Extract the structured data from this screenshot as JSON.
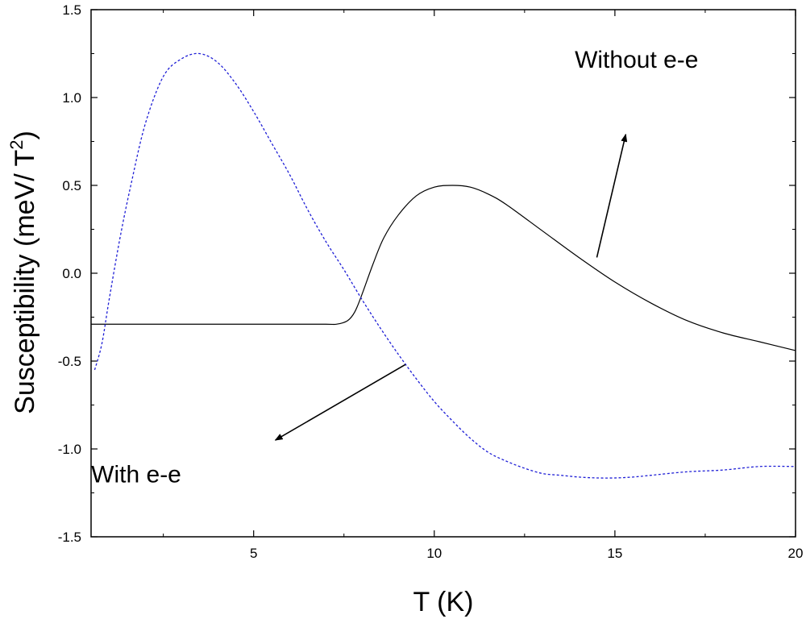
{
  "chart_data": {
    "type": "line",
    "xlabel": "T (K)",
    "ylabel_main": "Susceptibility (meV/ T",
    "ylabel_sup": "2",
    "ylabel_close": ")",
    "xlim": [
      0.5,
      20
    ],
    "ylim": [
      -1.5,
      1.5
    ],
    "x_ticks": [
      5,
      10,
      15,
      20
    ],
    "x_tick_labels": [
      "5",
      "10",
      "15",
      "20"
    ],
    "x_minor_ticks": [
      2.5,
      7.5,
      12.5,
      17.5
    ],
    "y_ticks": [
      -1.5,
      -1.0,
      -0.5,
      0.0,
      0.5,
      1.0,
      1.5
    ],
    "y_tick_labels": [
      "-1.5",
      "-1.0",
      "-0.5",
      "0.0",
      "0.5",
      "1.0",
      "1.5"
    ],
    "grid": false,
    "series": [
      {
        "color": "#000000",
        "style": "solid",
        "x": [
          0.5,
          2,
          4,
          6,
          7,
          7.3,
          7.6,
          7.8,
          8.0,
          8.3,
          8.6,
          9.0,
          9.5,
          10.0,
          10.5,
          11.0,
          11.5,
          12.0,
          13.0,
          14.0,
          15.0,
          16.0,
          17.0,
          18.0,
          19.0,
          20.0
        ],
        "y": [
          -0.29,
          -0.29,
          -0.29,
          -0.29,
          -0.29,
          -0.29,
          -0.27,
          -0.22,
          -0.12,
          0.05,
          0.2,
          0.33,
          0.44,
          0.49,
          0.5,
          0.49,
          0.45,
          0.39,
          0.24,
          0.09,
          -0.05,
          -0.17,
          -0.27,
          -0.34,
          -0.39,
          -0.44
        ]
      },
      {
        "color": "#1f1fd6",
        "style": "dashed",
        "x": [
          0.6,
          0.8,
          1.0,
          1.3,
          1.6,
          2.0,
          2.5,
          3.0,
          3.5,
          4.0,
          4.5,
          5.0,
          5.5,
          6.0,
          6.5,
          7.0,
          7.5,
          8.0,
          8.5,
          9.0,
          9.5,
          10.0,
          10.5,
          11.0,
          11.5,
          12.0,
          12.5,
          13.0,
          13.5,
          14.0,
          14.5,
          15.0,
          15.5,
          16.0,
          17.0,
          18.0,
          19.0,
          20.0
        ],
        "y": [
          -0.55,
          -0.4,
          -0.15,
          0.2,
          0.5,
          0.85,
          1.12,
          1.22,
          1.25,
          1.2,
          1.08,
          0.92,
          0.74,
          0.56,
          0.36,
          0.18,
          0.02,
          -0.15,
          -0.31,
          -0.46,
          -0.6,
          -0.73,
          -0.84,
          -0.94,
          -1.02,
          -1.07,
          -1.11,
          -1.14,
          -1.15,
          -1.16,
          -1.165,
          -1.165,
          -1.16,
          -1.15,
          -1.13,
          -1.12,
          -1.1,
          -1.1
        ]
      }
    ],
    "annotations": [
      {
        "text": "Without e-e",
        "x": 15.6,
        "y": 1.17
      },
      {
        "text": "With e-e",
        "x": 1.75,
        "y": -1.19
      }
    ],
    "arrows": [
      {
        "from": [
          14.5,
          0.09
        ],
        "to": [
          15.3,
          0.79
        ]
      },
      {
        "from": [
          9.2,
          -0.52
        ],
        "to": [
          5.6,
          -0.95
        ]
      }
    ]
  }
}
